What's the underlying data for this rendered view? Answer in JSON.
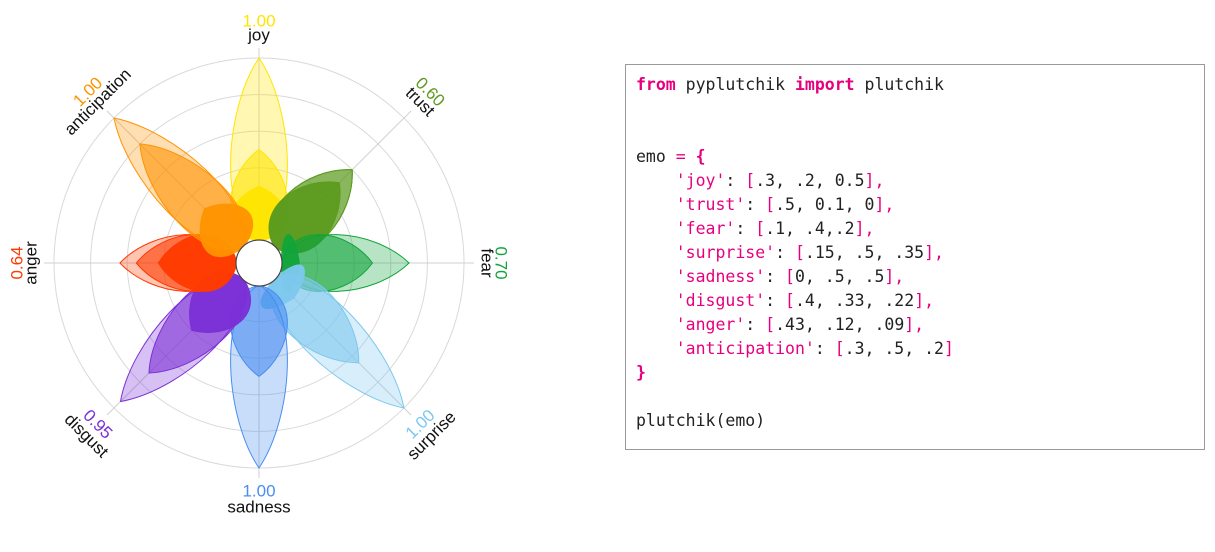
{
  "chart_data": {
    "type": "radar",
    "title": "",
    "tick_values": [
      0.2,
      0.4,
      0.6,
      0.8,
      1.0
    ],
    "grid": true,
    "emotions": [
      {
        "name": "joy",
        "total": "1.00",
        "values": [
          0.3,
          0.2,
          0.5
        ],
        "color": "#FFE500"
      },
      {
        "name": "trust",
        "total": "0.60",
        "values": [
          0.5,
          0.1,
          0
        ],
        "color": "#5C9B1E"
      },
      {
        "name": "fear",
        "total": "0.70",
        "values": [
          0.1,
          0.4,
          0.2
        ],
        "color": "#11A43A"
      },
      {
        "name": "surprise",
        "total": "1.00",
        "values": [
          0.15,
          0.5,
          0.35
        ],
        "color": "#7DC8EE"
      },
      {
        "name": "sadness",
        "total": "1.00",
        "values": [
          0,
          0.5,
          0.5
        ],
        "color": "#4A8DF0"
      },
      {
        "name": "disgust",
        "total": "0.95",
        "values": [
          0.4,
          0.33,
          0.22
        ],
        "color": "#7B2FD6"
      },
      {
        "name": "anger",
        "total": "0.64",
        "values": [
          0.43,
          0.12,
          0.09
        ],
        "color": "#FF3A00"
      },
      {
        "name": "anticipation",
        "total": "1.00",
        "values": [
          0.3,
          0.5,
          0.2
        ],
        "color": "#FF9300"
      }
    ]
  },
  "code": {
    "import_line": {
      "kw1": "from",
      "module": " pyplutchik ",
      "kw2": "import",
      "name": " plutchik"
    },
    "emo_line": {
      "var": "emo ",
      "eq": "=",
      "open": " {"
    },
    "entries": [
      {
        "key": "'joy'",
        "values": "[.3, .2, 0.5],",
        "open": "[",
        "nums": ".3, .2, 0.5",
        "close": "],"
      },
      {
        "key": "'trust'",
        "open": "[",
        "nums": ".5, 0.1, 0",
        "close": "],"
      },
      {
        "key": "'fear'",
        "open": "[",
        "nums": ".1, .4,.2",
        "close": "],"
      },
      {
        "key": "'surprise'",
        "open": "[",
        "nums": ".15, .5, .35",
        "close": "],"
      },
      {
        "key": "'sadness'",
        "open": "[",
        "nums": "0, .5, .5",
        "close": "],"
      },
      {
        "key": "'disgust'",
        "open": "[",
        "nums": ".4, .33, .22",
        "close": "],"
      },
      {
        "key": "'anger'",
        "open": "[",
        "nums": ".43, .12, .09",
        "close": "],"
      },
      {
        "key": "'anticipation'",
        "open": "[",
        "nums": ".3, .5, .2",
        "close": "]"
      }
    ],
    "close_brace": "}",
    "call_line": "plutchik(emo)"
  }
}
